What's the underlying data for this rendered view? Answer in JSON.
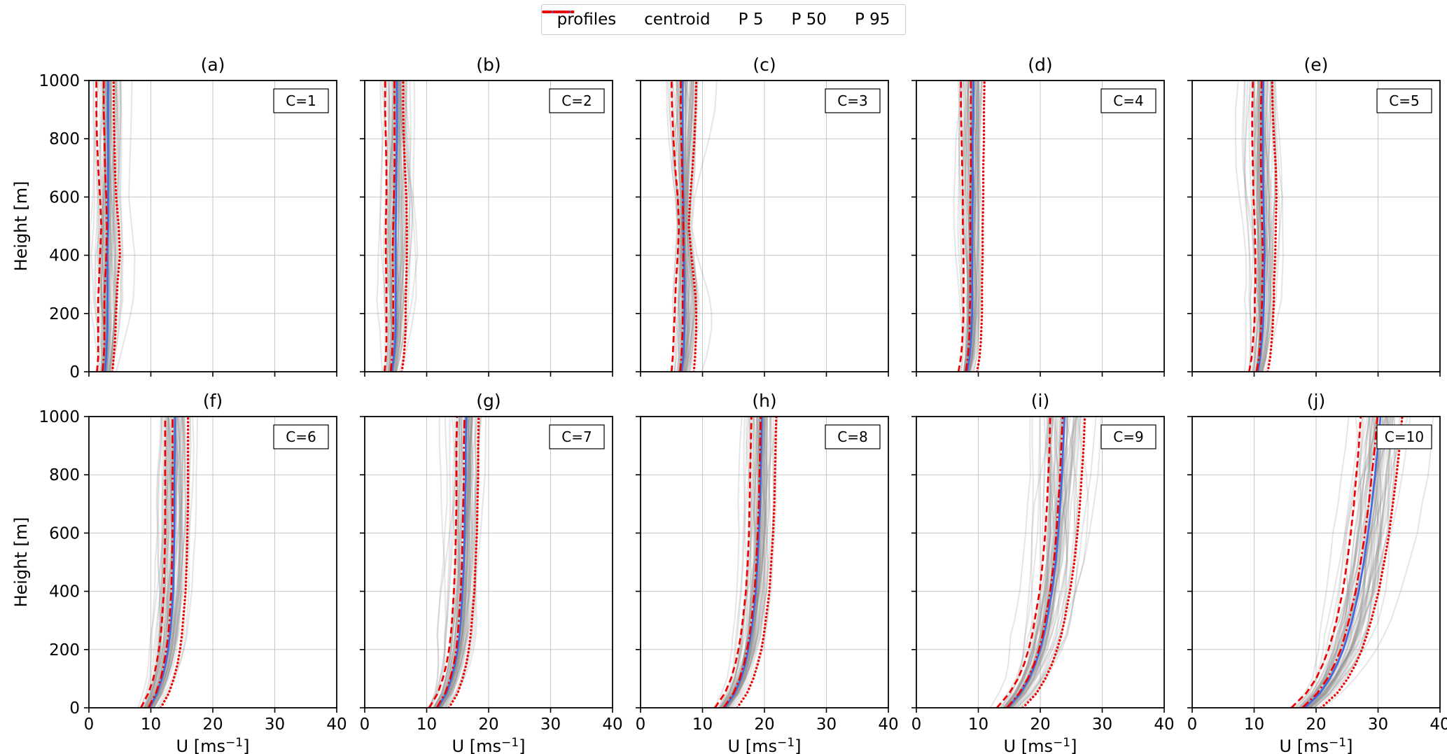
{
  "figure": {
    "ylabel": "Height [m]",
    "xlabel": {
      "prefix": "U [ms",
      "sup": "−1",
      "suffix": "]"
    },
    "legend": {
      "items": [
        {
          "label": "profiles",
          "color": "#999999",
          "style": "solid"
        },
        {
          "label": "centroid",
          "color": "#4169e1",
          "style": "solid"
        },
        {
          "label": "P 5",
          "color": "#f10000",
          "style": "dashed"
        },
        {
          "label": "P 50",
          "color": "#f10000",
          "style": "dashdot"
        },
        {
          "label": "P 95",
          "color": "#f10000",
          "style": "dotted"
        }
      ]
    }
  },
  "style": {
    "profile_color": "#8c8c8c",
    "profile_opacity": 0.22,
    "centroid_color": "#4169e1",
    "percentile_color": "#f10000",
    "grid_color": "#c6c6c6",
    "spine_color": "#000000",
    "background": "#ffffff"
  },
  "chart_data": {
    "type": "line",
    "title": "",
    "layout": {
      "rows": 2,
      "cols": 5,
      "grid": true,
      "legend_position": "top-center"
    },
    "series_labels": [
      "profiles",
      "centroid",
      "P 5",
      "P 50",
      "P 95"
    ],
    "x_axis": {
      "label": "U [ms^-1]",
      "range": [
        0,
        40
      ],
      "ticks": [
        0,
        10,
        20,
        30,
        40
      ]
    },
    "y_axis": {
      "label": "Height [m]",
      "range": [
        0,
        1000
      ],
      "ticks": [
        0,
        200,
        400,
        600,
        800,
        1000
      ]
    },
    "heights": [
      0,
      50,
      100,
      150,
      200,
      250,
      300,
      400,
      500,
      600,
      700,
      800,
      900,
      1000
    ],
    "panels": [
      {
        "title": "(a)",
        "cluster_label": "C=1",
        "n_profiles": 60,
        "centroid": [
          2.6,
          2.8,
          2.9,
          3.0,
          3.0,
          3.0,
          3.0,
          3.0,
          3.1,
          3.1,
          3.1,
          3.1,
          3.1,
          3.1
        ],
        "p5": [
          1.3,
          1.5,
          1.5,
          1.5,
          1.5,
          1.5,
          1.6,
          1.8,
          2.0,
          1.8,
          1.5,
          1.3,
          1.2,
          1.2
        ],
        "p50": [
          2.2,
          2.4,
          2.5,
          2.5,
          2.5,
          2.5,
          2.6,
          2.8,
          2.9,
          2.8,
          2.6,
          2.5,
          2.4,
          2.4
        ],
        "p95": [
          3.8,
          4.0,
          4.2,
          4.3,
          4.4,
          4.5,
          4.6,
          5.0,
          4.8,
          4.4,
          4.2,
          4.1,
          4.0,
          4.0
        ]
      },
      {
        "title": "(b)",
        "cluster_label": "C=2",
        "n_profiles": 60,
        "centroid": [
          4.4,
          4.7,
          4.9,
          5.0,
          5.0,
          5.0,
          5.0,
          5.0,
          5.0,
          5.1,
          5.1,
          5.2,
          5.2,
          5.2
        ],
        "p5": [
          3.2,
          3.4,
          3.5,
          3.5,
          3.5,
          3.5,
          3.5,
          3.4,
          3.4,
          3.5,
          3.5,
          3.4,
          3.3,
          3.3
        ],
        "p50": [
          4.2,
          4.4,
          4.5,
          4.6,
          4.6,
          4.6,
          4.6,
          4.5,
          4.6,
          4.7,
          4.8,
          4.8,
          4.8,
          4.8
        ],
        "p95": [
          6.0,
          6.3,
          6.5,
          6.6,
          6.6,
          6.6,
          6.7,
          6.8,
          6.8,
          6.7,
          6.5,
          6.3,
          6.2,
          6.2
        ]
      },
      {
        "title": "(c)",
        "cluster_label": "C=3",
        "n_profiles": 60,
        "centroid": [
          6.6,
          6.9,
          7.0,
          7.1,
          7.1,
          7.1,
          7.1,
          7.0,
          6.9,
          6.9,
          6.8,
          6.8,
          6.8,
          6.8
        ],
        "p5": [
          5.0,
          5.2,
          5.3,
          5.4,
          5.5,
          5.6,
          5.7,
          6.0,
          6.2,
          6.0,
          5.6,
          5.3,
          5.1,
          5.0
        ],
        "p50": [
          6.4,
          6.6,
          6.7,
          6.8,
          6.8,
          6.8,
          6.8,
          6.9,
          6.9,
          6.8,
          6.7,
          6.6,
          6.5,
          6.5
        ],
        "p95": [
          8.6,
          8.8,
          8.9,
          9.0,
          9.0,
          8.9,
          8.7,
          8.2,
          7.8,
          8.0,
          8.4,
          8.7,
          8.9,
          9.0
        ]
      },
      {
        "title": "(d)",
        "cluster_label": "C=4",
        "n_profiles": 60,
        "centroid": [
          8.2,
          8.6,
          8.8,
          8.9,
          9.0,
          9.0,
          9.0,
          9.0,
          9.0,
          9.1,
          9.1,
          9.1,
          9.2,
          9.2
        ],
        "p5": [
          6.8,
          7.2,
          7.4,
          7.5,
          7.6,
          7.6,
          7.6,
          7.6,
          7.5,
          7.5,
          7.4,
          7.3,
          7.2,
          7.2
        ],
        "p50": [
          8.0,
          8.3,
          8.5,
          8.6,
          8.6,
          8.7,
          8.7,
          8.7,
          8.7,
          8.7,
          8.8,
          8.8,
          8.8,
          8.8
        ],
        "p95": [
          9.8,
          10.2,
          10.4,
          10.5,
          10.6,
          10.6,
          10.6,
          10.7,
          10.7,
          10.8,
          10.8,
          10.9,
          10.9,
          11.0
        ]
      },
      {
        "title": "(e)",
        "cluster_label": "C=5",
        "n_profiles": 60,
        "centroid": [
          10.6,
          11.0,
          11.2,
          11.4,
          11.5,
          11.6,
          11.6,
          11.7,
          11.6,
          11.5,
          11.4,
          11.4,
          11.4,
          11.5
        ],
        "p5": [
          9.2,
          9.6,
          9.8,
          10.0,
          10.1,
          10.1,
          10.2,
          10.2,
          10.1,
          9.9,
          9.8,
          9.7,
          9.7,
          9.8
        ],
        "p50": [
          10.4,
          10.8,
          11.0,
          11.1,
          11.2,
          11.3,
          11.3,
          11.4,
          11.3,
          11.2,
          11.1,
          11.1,
          11.1,
          11.2
        ],
        "p95": [
          12.2,
          12.6,
          12.8,
          13.0,
          13.1,
          13.2,
          13.2,
          13.4,
          13.5,
          13.6,
          13.5,
          13.2,
          13.0,
          12.9
        ]
      },
      {
        "title": "(f)",
        "cluster_label": "C=6",
        "n_profiles": 60,
        "centroid": [
          9.8,
          11.0,
          11.8,
          12.4,
          12.8,
          13.1,
          13.3,
          13.6,
          13.7,
          13.8,
          13.8,
          13.8,
          13.9,
          13.9
        ],
        "p5": [
          8.4,
          9.6,
          10.4,
          10.9,
          11.3,
          11.6,
          11.8,
          12.1,
          12.2,
          12.3,
          12.3,
          12.3,
          12.3,
          12.3
        ],
        "p50": [
          9.6,
          10.8,
          11.6,
          12.1,
          12.5,
          12.8,
          13.0,
          13.3,
          13.4,
          13.5,
          13.5,
          13.5,
          13.5,
          13.5
        ],
        "p95": [
          11.6,
          12.9,
          13.7,
          14.3,
          14.7,
          15.0,
          15.2,
          15.6,
          15.8,
          15.9,
          16.0,
          16.0,
          16.0,
          16.0
        ]
      },
      {
        "title": "(g)",
        "cluster_label": "C=7",
        "n_profiles": 60,
        "centroid": [
          11.8,
          13.2,
          14.0,
          14.6,
          15.0,
          15.3,
          15.5,
          15.8,
          16.0,
          16.1,
          16.2,
          16.3,
          16.3,
          16.4
        ],
        "p5": [
          10.4,
          11.8,
          12.6,
          13.2,
          13.6,
          13.9,
          14.1,
          14.4,
          14.6,
          14.7,
          14.8,
          14.8,
          14.8,
          14.9
        ],
        "p50": [
          11.6,
          13.0,
          13.8,
          14.4,
          14.8,
          15.0,
          15.2,
          15.5,
          15.7,
          15.8,
          15.9,
          16.0,
          16.0,
          16.1
        ],
        "p95": [
          13.6,
          15.0,
          15.8,
          16.4,
          16.8,
          17.1,
          17.3,
          17.7,
          17.9,
          18.1,
          18.2,
          18.3,
          18.3,
          18.4
        ]
      },
      {
        "title": "(h)",
        "cluster_label": "C=8",
        "n_profiles": 60,
        "centroid": [
          13.6,
          15.2,
          16.2,
          16.9,
          17.4,
          17.8,
          18.1,
          18.6,
          18.9,
          19.1,
          19.3,
          19.4,
          19.5,
          19.6
        ],
        "p5": [
          12.0,
          13.6,
          14.6,
          15.3,
          15.8,
          16.2,
          16.5,
          17.0,
          17.3,
          17.5,
          17.6,
          17.7,
          17.8,
          17.9
        ],
        "p50": [
          13.4,
          15.0,
          16.0,
          16.7,
          17.2,
          17.6,
          17.9,
          18.4,
          18.7,
          18.9,
          19.1,
          19.2,
          19.3,
          19.4
        ],
        "p95": [
          15.6,
          17.2,
          18.2,
          18.9,
          19.5,
          19.9,
          20.2,
          20.8,
          21.1,
          21.4,
          21.6,
          21.7,
          21.8,
          21.9
        ]
      },
      {
        "title": "(i)",
        "cluster_label": "C=9",
        "n_profiles": 60,
        "centroid": [
          14.8,
          16.8,
          18.2,
          19.2,
          20.0,
          20.6,
          21.1,
          21.9,
          22.5,
          22.9,
          23.2,
          23.5,
          23.7,
          23.9
        ],
        "p5": [
          13.0,
          15.0,
          16.4,
          17.4,
          18.1,
          18.7,
          19.1,
          19.9,
          20.4,
          20.8,
          21.1,
          21.3,
          21.5,
          21.6
        ],
        "p50": [
          14.6,
          16.6,
          18.0,
          19.0,
          19.8,
          20.4,
          20.8,
          21.6,
          22.2,
          22.6,
          22.9,
          23.2,
          23.4,
          23.6
        ],
        "p95": [
          17.2,
          19.4,
          20.8,
          21.9,
          22.7,
          23.4,
          23.9,
          24.8,
          25.5,
          26.0,
          26.4,
          26.7,
          27.0,
          27.2
        ]
      },
      {
        "title": "(j)",
        "cluster_label": "C=10",
        "n_profiles": 60,
        "centroid": [
          18.2,
          20.6,
          22.2,
          23.4,
          24.4,
          25.1,
          25.8,
          26.9,
          27.7,
          28.4,
          29.0,
          29.5,
          30.0,
          30.4
        ],
        "p5": [
          16.0,
          18.4,
          20.0,
          21.1,
          22.0,
          22.7,
          23.3,
          24.3,
          25.0,
          25.6,
          26.1,
          26.5,
          26.9,
          27.2
        ],
        "p50": [
          17.8,
          20.2,
          21.8,
          23.0,
          24.0,
          24.7,
          25.3,
          26.4,
          27.2,
          27.9,
          28.5,
          29.0,
          29.5,
          29.9
        ],
        "p95": [
          20.8,
          23.4,
          25.1,
          26.4,
          27.4,
          28.2,
          28.9,
          30.1,
          31.0,
          31.8,
          32.4,
          33.0,
          33.5,
          33.9
        ]
      }
    ]
  }
}
